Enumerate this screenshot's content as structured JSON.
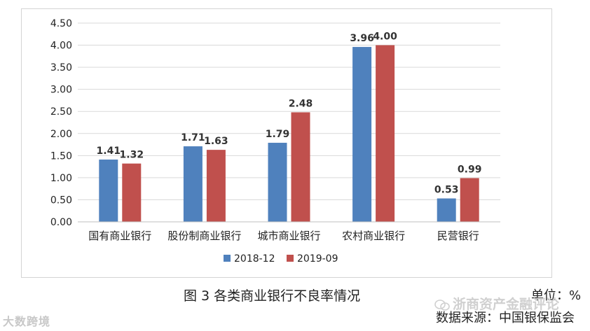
{
  "chart_data": {
    "type": "bar",
    "categories": [
      "国有商业银行",
      "股份制商业银行",
      "城市商业银行",
      "农村商业银行",
      "民营银行"
    ],
    "series": [
      {
        "name": "2018-12",
        "color": "#4f81bd",
        "values": [
          1.41,
          1.71,
          1.79,
          3.96,
          0.53
        ]
      },
      {
        "name": "2019-09",
        "color": "#c0504d",
        "values": [
          1.32,
          1.63,
          2.48,
          4.0,
          0.99
        ]
      }
    ],
    "ylim": [
      0,
      4.5
    ],
    "yticks": [
      "0.00",
      "0.50",
      "1.00",
      "1.50",
      "2.00",
      "2.50",
      "3.00",
      "3.50",
      "4.00",
      "4.50"
    ],
    "grid": true,
    "legend_position": "bottom"
  },
  "caption": "图 3  各类商业银行不良率情况",
  "unit": "单位：%",
  "source": "数据来源：中国银保监会",
  "watermark_left": "大数跨境",
  "watermark_right": "浙商资产金融评论"
}
